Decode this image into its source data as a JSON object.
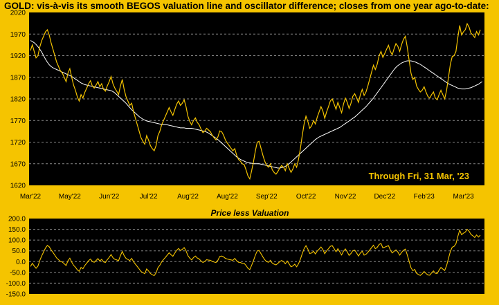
{
  "title": "GOLD:  vis-à-vis its smooth BEGOS valuation line and oscillator difference; closes from one year ago-to-date:",
  "colors": {
    "background": "#f5c400",
    "plot_bg": "#000000",
    "price": "#f5c400",
    "valuation": "#ffffff",
    "grid": "#8a8a8a"
  },
  "chart_data": [
    {
      "type": "line",
      "title": "",
      "annotation": "Through Fri, 31 Mar, '23",
      "ylim": [
        1620,
        2020
      ],
      "yticks": [
        "2020",
        "1970",
        "1920",
        "1870",
        "1820",
        "1770",
        "1720",
        "1670",
        "1620"
      ],
      "ytick_values": [
        2020,
        1970,
        1920,
        1870,
        1820,
        1770,
        1720,
        1670,
        1620
      ],
      "xtick_labels": [
        "Mar'22",
        "May'22",
        "Jun'22",
        "Jul'22",
        "Aug'22",
        "Aug'22",
        "Sep'22",
        "Oct'22",
        "Nov'22",
        "Dec'22",
        "Feb'23",
        "Mar'23"
      ],
      "xtick_index": [
        0,
        21,
        42,
        63,
        84,
        105,
        126,
        147,
        168,
        189,
        210,
        231
      ],
      "grid": true,
      "series": [
        {
          "role": "price",
          "values": [
            1932,
            1945,
            1930,
            1915,
            1920,
            1940,
            1955,
            1965,
            1975,
            1980,
            1968,
            1950,
            1935,
            1920,
            1905,
            1895,
            1885,
            1880,
            1870,
            1860,
            1880,
            1890,
            1870,
            1852,
            1840,
            1825,
            1815,
            1830,
            1822,
            1835,
            1845,
            1855,
            1862,
            1850,
            1845,
            1852,
            1860,
            1848,
            1855,
            1842,
            1838,
            1850,
            1860,
            1872,
            1855,
            1845,
            1838,
            1830,
            1850,
            1865,
            1842,
            1825,
            1815,
            1805,
            1810,
            1790,
            1775,
            1760,
            1745,
            1730,
            1722,
            1715,
            1735,
            1725,
            1712,
            1705,
            1700,
            1712,
            1735,
            1745,
            1760,
            1770,
            1780,
            1790,
            1800,
            1790,
            1782,
            1795,
            1808,
            1815,
            1805,
            1810,
            1818,
            1802,
            1780,
            1768,
            1760,
            1770,
            1776,
            1766,
            1760,
            1750,
            1742,
            1746,
            1752,
            1748,
            1744,
            1736,
            1730,
            1725,
            1732,
            1746,
            1744,
            1736,
            1725,
            1718,
            1712,
            1706,
            1700,
            1705,
            1690,
            1680,
            1676,
            1670,
            1668,
            1656,
            1642,
            1635,
            1654,
            1675,
            1700,
            1720,
            1722,
            1706,
            1690,
            1676,
            1666,
            1662,
            1670,
            1656,
            1650,
            1646,
            1652,
            1660,
            1666,
            1662,
            1654,
            1670,
            1660,
            1650,
            1658,
            1670,
            1662,
            1680,
            1705,
            1735,
            1762,
            1780,
            1768,
            1752,
            1758,
            1770,
            1762,
            1778,
            1790,
            1802,
            1792,
            1775,
            1790,
            1802,
            1815,
            1820,
            1808,
            1796,
            1812,
            1800,
            1788,
            1808,
            1822,
            1812,
            1798,
            1810,
            1826,
            1832,
            1822,
            1812,
            1830,
            1842,
            1828,
            1836,
            1850,
            1866,
            1882,
            1898,
            1888,
            1900,
            1920,
            1930,
            1916,
            1925,
            1935,
            1944,
            1930,
            1922,
            1936,
            1948,
            1942,
            1930,
            1946,
            1958,
            1965,
            1940,
            1910,
            1880,
            1865,
            1870,
            1850,
            1842,
            1836,
            1840,
            1848,
            1836,
            1826,
            1822,
            1830,
            1836,
            1822,
            1818,
            1830,
            1840,
            1830,
            1820,
            1840,
            1870,
            1900,
            1918,
            1920,
            1930,
            1962,
            1990,
            1968,
            1975,
            1980,
            1994,
            1986,
            1972,
            1968,
            1962,
            1976,
            1968,
            1980
          ],
          "note": "yellow price line; values in USD"
        },
        {
          "role": "valuation",
          "values": [
            1955,
            1953,
            1950,
            1946,
            1941,
            1935,
            1928,
            1920,
            1912,
            1905,
            1899,
            1895,
            1892,
            1890,
            1888,
            1886,
            1884,
            1882,
            1880,
            1878,
            1876,
            1874,
            1872,
            1869,
            1866,
            1863,
            1860,
            1857,
            1855,
            1853,
            1852,
            1851,
            1850,
            1849,
            1848,
            1847,
            1846,
            1845,
            1844,
            1843,
            1842,
            1841,
            1840,
            1839,
            1837,
            1834,
            1830,
            1826,
            1822,
            1818,
            1814,
            1810,
            1805,
            1800,
            1795,
            1791,
            1787,
            1783,
            1779,
            1776,
            1773,
            1771,
            1769,
            1768,
            1767,
            1766,
            1765,
            1764,
            1763,
            1762,
            1761,
            1760,
            1760,
            1760,
            1759,
            1758,
            1757,
            1756,
            1755,
            1754,
            1753,
            1753,
            1753,
            1752,
            1752,
            1752,
            1752,
            1751,
            1750,
            1749,
            1748,
            1747,
            1746,
            1745,
            1743,
            1741,
            1738,
            1735,
            1732,
            1729,
            1726,
            1722,
            1718,
            1714,
            1710,
            1706,
            1702,
            1698,
            1694,
            1690,
            1686,
            1683,
            1680,
            1678,
            1676,
            1674,
            1673,
            1672,
            1671,
            1670,
            1670,
            1670,
            1670,
            1669,
            1668,
            1667,
            1666,
            1665,
            1664,
            1663,
            1662,
            1661,
            1660,
            1660,
            1661,
            1662,
            1664,
            1667,
            1670,
            1674,
            1678,
            1682,
            1686,
            1690,
            1694,
            1698,
            1702,
            1706,
            1710,
            1714,
            1718,
            1722,
            1726,
            1729,
            1732,
            1734,
            1736,
            1738,
            1740,
            1742,
            1744,
            1746,
            1748,
            1750,
            1752,
            1754,
            1757,
            1760,
            1763,
            1766,
            1769,
            1772,
            1775,
            1778,
            1782,
            1786,
            1790,
            1794,
            1798,
            1802,
            1807,
            1812,
            1817,
            1822,
            1828,
            1834,
            1840,
            1846,
            1852,
            1858,
            1864,
            1870,
            1876,
            1882,
            1888,
            1893,
            1897,
            1900,
            1903,
            1905,
            1907,
            1908,
            1908,
            1908,
            1907,
            1906,
            1904,
            1902,
            1900,
            1897,
            1894,
            1891,
            1888,
            1885,
            1882,
            1879,
            1876,
            1873,
            1870,
            1867,
            1864,
            1861,
            1858,
            1855,
            1853,
            1851,
            1849,
            1847,
            1845,
            1844,
            1843,
            1843,
            1843,
            1844,
            1845,
            1846,
            1848,
            1850,
            1852,
            1854,
            1857,
            1860
          ],
          "note": "white smooth valuation line"
        }
      ]
    },
    {
      "type": "line",
      "title": "Price less Valuation",
      "ylim": [
        -150,
        200
      ],
      "yticks": [
        "200.0",
        "150.0",
        "100.0",
        "50.0",
        "0.0",
        "-50.0",
        "-100.0",
        "-150.0"
      ],
      "ytick_values": [
        200,
        150,
        100,
        50,
        0,
        -50,
        -100,
        -150
      ],
      "grid": true,
      "series": [
        {
          "role": "oscillator",
          "note": "price minus valuation, computed from the two series above",
          "values": []
        }
      ]
    }
  ]
}
